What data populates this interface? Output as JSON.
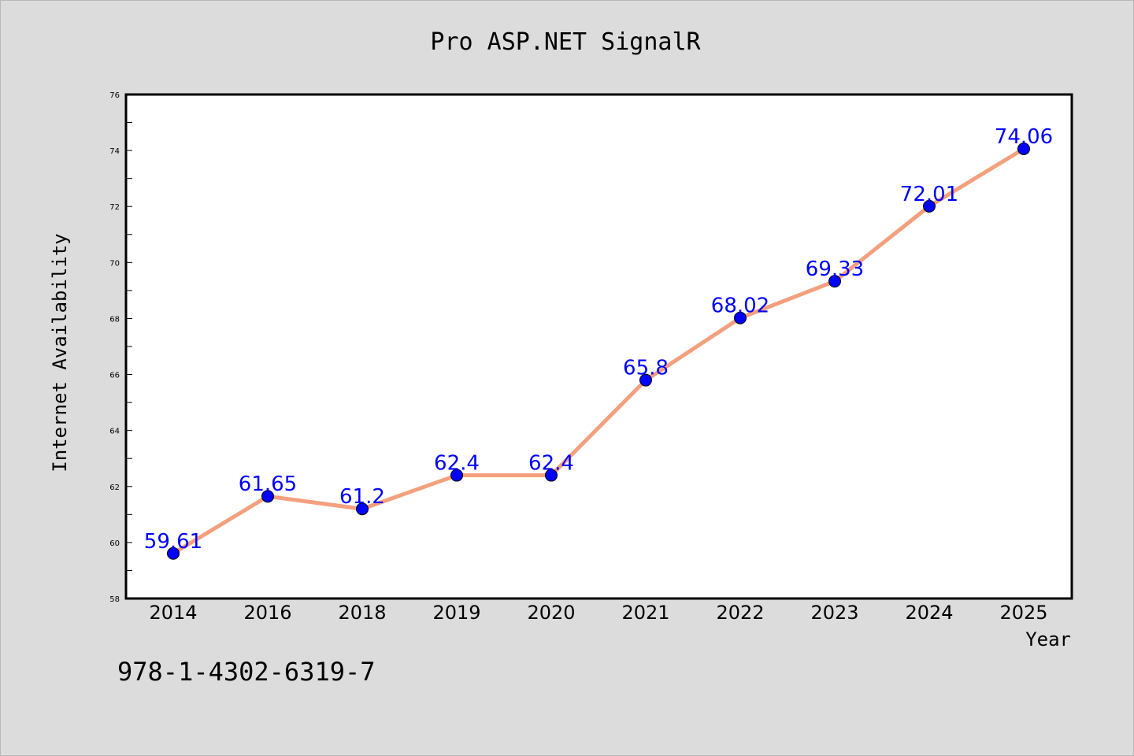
{
  "chart_data": {
    "type": "line",
    "title": "Pro ASP.NET SignalR",
    "xlabel": "Year",
    "ylabel": "Internet Availability",
    "categories": [
      "2014",
      "2016",
      "2018",
      "2019",
      "2020",
      "2021",
      "2022",
      "2023",
      "2024",
      "2025"
    ],
    "series": [
      {
        "values": [
          59.61,
          61.65,
          61.2,
          62.4,
          62.4,
          65.8,
          68.02,
          69.33,
          72.01,
          74.06
        ]
      }
    ],
    "ylim": [
      58,
      76
    ],
    "yticks": [
      58,
      60,
      62,
      64,
      66,
      68,
      70,
      72,
      74,
      76
    ],
    "grid": false,
    "colors": {
      "line": "#f4a07e",
      "marker": "#0000ff",
      "data_label": "#0000ff",
      "background": "#dcdcdc",
      "plot_background": "#ffffff"
    }
  },
  "footer": {
    "text": "978-1-4302-6319-7"
  }
}
